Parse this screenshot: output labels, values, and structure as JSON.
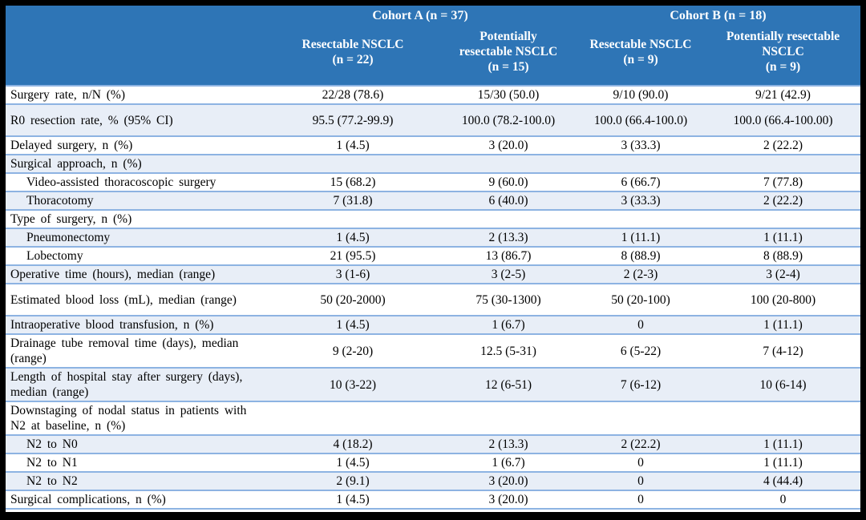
{
  "colors": {
    "header_bg": "#2E75B6",
    "band_bg": "#E8EEF7",
    "border": "#8DB3E2",
    "frame": "#000000",
    "header_text": "#FFFFFF"
  },
  "table": {
    "header": {
      "groups": [
        {
          "label": "Cohort A (n = 37)"
        },
        {
          "label": "Cohort B (n = 18)"
        }
      ],
      "sub_cols": [
        "Resectable NSCLC\n(n = 22)",
        "Potentially\nresectable NSCLC\n(n = 15)",
        "Resectable NSCLC\n(n = 9)",
        "Potentially resectable\nNSCLC\n(n = 9)"
      ]
    },
    "rows": [
      {
        "label": "Surgery rate, n/N (%)",
        "values": [
          "22/28 (78.6)",
          "15/30 (50.0)",
          "9/10 (90.0)",
          "9/21 (42.9)"
        ]
      },
      {
        "label": "R0 resection rate, % (95% CI)",
        "shaded": true,
        "tall": true,
        "values": [
          "95.5 (77.2-99.9)",
          "100.0 (78.2-100.0)",
          "100.0 (66.4-100.0)",
          "100.0 (66.4-100.00)"
        ]
      },
      {
        "label": "Delayed surgery, n (%)",
        "values": [
          "1 (4.5)",
          "3 (20.0)",
          "3 (33.3)",
          "2 (22.2)"
        ]
      },
      {
        "label": "Surgical approach, n (%)",
        "section": true,
        "shaded": true,
        "values": [
          "",
          "",
          "",
          ""
        ]
      },
      {
        "label": "Video-assisted thoracoscopic surgery",
        "indent": true,
        "values": [
          "15 (68.2)",
          "9 (60.0)",
          "6 (66.7)",
          "7 (77.8)"
        ]
      },
      {
        "label": "Thoracotomy",
        "indent": true,
        "shaded": true,
        "values": [
          "7 (31.8)",
          "6 (40.0)",
          "3 (33.3)",
          "2 (22.2)"
        ]
      },
      {
        "label": "Type of surgery, n (%)",
        "section": true,
        "values": [
          "",
          "",
          "",
          ""
        ]
      },
      {
        "label": "Pneumonectomy",
        "indent": true,
        "shaded": true,
        "values": [
          "1 (4.5)",
          "2 (13.3)",
          "1 (11.1)",
          "1 (11.1)"
        ]
      },
      {
        "label": "Lobectomy",
        "indent": true,
        "values": [
          "21 (95.5)",
          "13 (86.7)",
          "8 (88.9)",
          "8 (88.9)"
        ]
      },
      {
        "label": "Operative time (hours), median (range)",
        "shaded": true,
        "values": [
          "3 (1-6)",
          "3 (2-5)",
          "2 (2-3)",
          "3 (2-4)"
        ]
      },
      {
        "label": "Estimated blood loss (mL), median (range)",
        "tall": true,
        "values": [
          "50 (20-2000)",
          "75 (30-1300)",
          "50 (20-100)",
          "100 (20-800)"
        ]
      },
      {
        "label": "Intraoperative blood transfusion, n (%)",
        "shaded": true,
        "values": [
          "1 (4.5)",
          "1 (6.7)",
          "0",
          "1 (11.1)"
        ]
      },
      {
        "label": "Drainage tube removal time (days), median\n(range)",
        "tall": true,
        "values": [
          "9 (2-20)",
          "12.5 (5-31)",
          "6 (5-22)",
          "7 (4-12)"
        ]
      },
      {
        "label": "Length of hospital stay after surgery (days),\nmedian (range)",
        "shaded": true,
        "tall": true,
        "values": [
          "10 (3-22)",
          "12 (6-51)",
          "7 (6-12)",
          "10 (6-14)"
        ]
      },
      {
        "label": "Downstaging of nodal status in patients with\nN2 at baseline, n (%)",
        "section": true,
        "tall": true,
        "values": [
          "",
          "",
          "",
          ""
        ]
      },
      {
        "label": "N2 to N0",
        "indent": true,
        "shaded": true,
        "values": [
          "4 (18.2)",
          "2 (13.3)",
          "2 (22.2)",
          "1 (11.1)"
        ]
      },
      {
        "label": "N2 to N1",
        "indent": true,
        "values": [
          "1 (4.5)",
          "1 (6.7)",
          "0",
          "1 (11.1)"
        ]
      },
      {
        "label": "N2 to N2",
        "indent": true,
        "shaded": true,
        "values": [
          "2 (9.1)",
          "3 (20.0)",
          "0",
          "4 (44.4)"
        ]
      },
      {
        "label": "Surgical complications, n (%)",
        "values": [
          "1 (4.5)",
          "3 (20.0)",
          "0",
          "0"
        ]
      }
    ]
  }
}
